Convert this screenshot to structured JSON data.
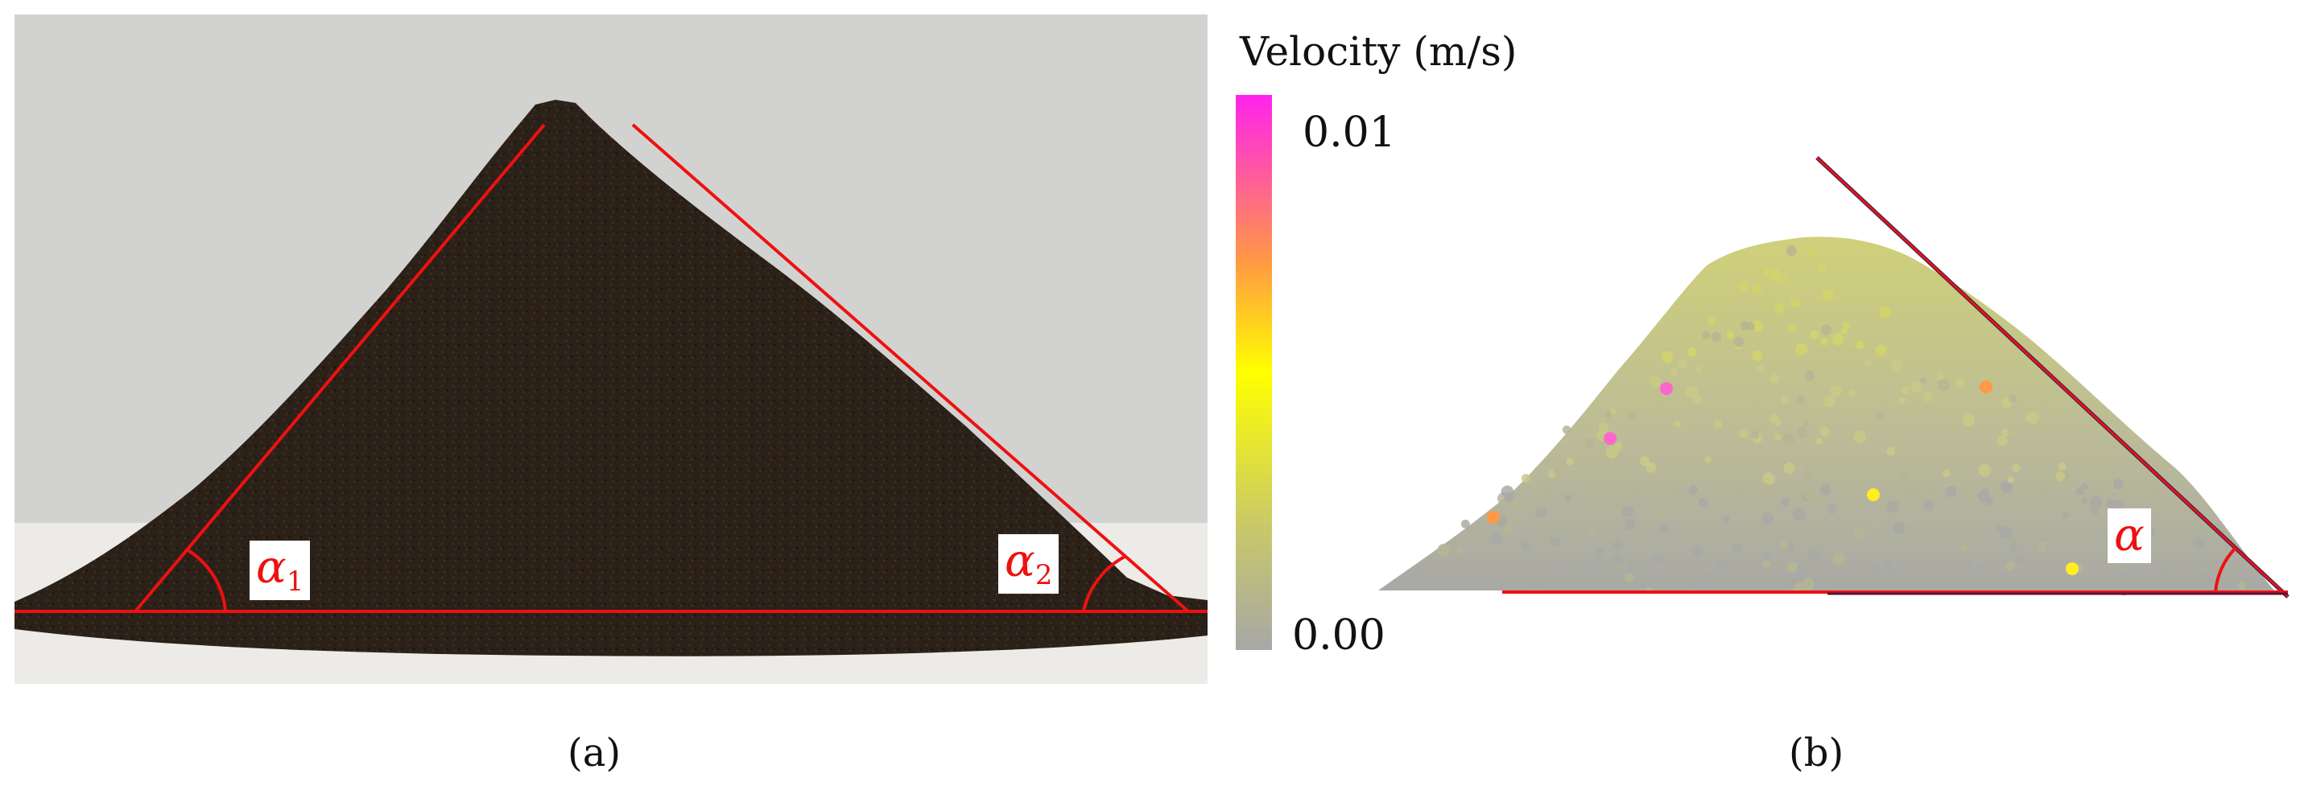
{
  "panel_a": {
    "caption": "(a)",
    "angle_left_symbol": "α",
    "angle_left_index": "1",
    "angle_right_symbol": "α",
    "angle_right_index": "2",
    "background_color": "#d2d3d1",
    "pile_color": "#2b2118",
    "line_color": "#ee1111"
  },
  "panel_b": {
    "caption": "(b)",
    "angle_symbol": "α",
    "colorbar": {
      "title": "Velocity  (m/s)",
      "max_label": "0.01",
      "min_label": "0.00",
      "max_value": 0.01,
      "min_value": 0.0,
      "gradient_colors": [
        "#ff22ee",
        "#ff9944",
        "#ffff00",
        "#c8c86a",
        "#a7a7a7"
      ]
    },
    "particle_colors": [
      "#c9c987",
      "#b5b594",
      "#a9a9a5",
      "#d4d46a",
      "#e0d84a"
    ],
    "line_color": "#ee1111",
    "dark_line_color": "#222255"
  }
}
